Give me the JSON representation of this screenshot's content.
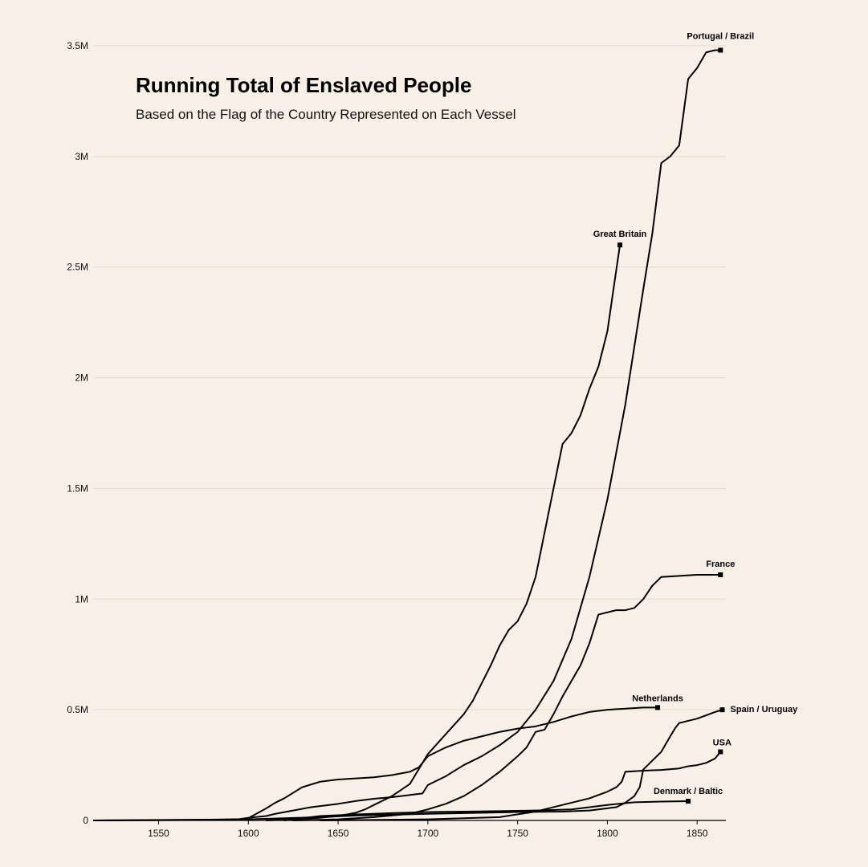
{
  "chart_data": {
    "type": "line",
    "title": "Running Total of Enslaved People",
    "subtitle": "Based on the Flag of the Country Represented on Each Vessel",
    "xlabel": "",
    "ylabel": "",
    "xlim": [
      1514,
      1866
    ],
    "ylim": [
      0,
      3500000
    ],
    "x_ticks": [
      1550,
      1600,
      1650,
      1700,
      1750,
      1800,
      1850
    ],
    "y_ticks": [
      0,
      500000,
      1000000,
      1500000,
      2000000,
      2500000,
      3000000,
      3500000
    ],
    "y_tick_labels": [
      "0",
      "0.5M",
      "1M",
      "1.5M",
      "2M",
      "2.5M",
      "3M",
      "3.5M"
    ],
    "grid": "horizontal",
    "line_color": "#000000",
    "grid_color": "#e4dad0",
    "background": "#f8efe6",
    "series": [
      {
        "name": "Portugal / Brazil",
        "x": [
          1514,
          1550,
          1580,
          1595,
          1600,
          1610,
          1615,
          1625,
          1635,
          1650,
          1660,
          1670,
          1680,
          1690,
          1697,
          1700,
          1710,
          1720,
          1725,
          1730,
          1740,
          1750,
          1760,
          1770,
          1780,
          1790,
          1800,
          1810,
          1820,
          1825,
          1830,
          1835,
          1840,
          1845,
          1850,
          1855,
          1860,
          1863
        ],
        "y": [
          0,
          1000,
          3000,
          6000,
          12000,
          20000,
          30000,
          45000,
          60000,
          75000,
          88000,
          98000,
          105000,
          115000,
          122000,
          160000,
          200000,
          250000,
          270000,
          290000,
          340000,
          400000,
          500000,
          630000,
          820000,
          1100000,
          1450000,
          1880000,
          2400000,
          2650000,
          2970000,
          3000000,
          3050000,
          3350000,
          3400000,
          3470000,
          3480000,
          3480000
        ]
      },
      {
        "name": "Great Britain",
        "x": [
          1610,
          1620,
          1630,
          1640,
          1650,
          1660,
          1665,
          1670,
          1680,
          1690,
          1700,
          1710,
          1720,
          1725,
          1730,
          1735,
          1740,
          1745,
          1750,
          1755,
          1760,
          1765,
          1770,
          1775,
          1780,
          1785,
          1790,
          1795,
          1800,
          1805,
          1807
        ],
        "y": [
          0,
          3000,
          7000,
          12000,
          20000,
          35000,
          50000,
          70000,
          110000,
          165000,
          300000,
          390000,
          480000,
          540000,
          620000,
          700000,
          790000,
          860000,
          900000,
          980000,
          1100000,
          1300000,
          1500000,
          1700000,
          1750000,
          1830000,
          1950000,
          2050000,
          2210000,
          2490000,
          2600000
        ]
      },
      {
        "name": "France",
        "x": [
          1625,
          1650,
          1670,
          1690,
          1700,
          1710,
          1720,
          1730,
          1740,
          1750,
          1755,
          1760,
          1765,
          1770,
          1775,
          1780,
          1785,
          1790,
          1795,
          1800,
          1805,
          1810,
          1815,
          1820,
          1825,
          1830,
          1840,
          1850,
          1863
        ],
        "y": [
          0,
          5000,
          15000,
          30000,
          50000,
          75000,
          110000,
          160000,
          220000,
          290000,
          330000,
          400000,
          410000,
          480000,
          560000,
          630000,
          700000,
          800000,
          930000,
          940000,
          950000,
          950000,
          960000,
          1000000,
          1060000,
          1100000,
          1105000,
          1110000,
          1110000
        ]
      },
      {
        "name": "Netherlands",
        "x": [
          1600,
          1610,
          1615,
          1620,
          1630,
          1640,
          1650,
          1660,
          1670,
          1680,
          1690,
          1695,
          1700,
          1710,
          1720,
          1730,
          1740,
          1750,
          1760,
          1770,
          1780,
          1790,
          1800,
          1810,
          1820,
          1828
        ],
        "y": [
          10000,
          55000,
          80000,
          100000,
          150000,
          175000,
          185000,
          190000,
          195000,
          205000,
          220000,
          240000,
          290000,
          330000,
          360000,
          380000,
          400000,
          415000,
          425000,
          445000,
          470000,
          490000,
          500000,
          505000,
          510000,
          510000
        ]
      },
      {
        "name": "Spain / Uruguay",
        "x": [
          1514,
          1600,
          1640,
          1660,
          1700,
          1750,
          1775,
          1790,
          1800,
          1805,
          1810,
          1815,
          1818,
          1820,
          1825,
          1830,
          1835,
          1838,
          1840,
          1845,
          1850,
          1855,
          1860,
          1864
        ],
        "y": [
          0,
          5000,
          15000,
          22000,
          30000,
          38000,
          40000,
          45000,
          55000,
          60000,
          80000,
          110000,
          150000,
          230000,
          270000,
          310000,
          380000,
          420000,
          440000,
          450000,
          460000,
          475000,
          490000,
          500000
        ]
      },
      {
        "name": "USA",
        "x": [
          1640,
          1700,
          1740,
          1760,
          1770,
          1780,
          1790,
          1795,
          1800,
          1805,
          1808,
          1810,
          1820,
          1830,
          1840,
          1845,
          1850,
          1855,
          1860,
          1863
        ],
        "y": [
          0,
          5000,
          15000,
          40000,
          60000,
          80000,
          100000,
          115000,
          130000,
          150000,
          175000,
          220000,
          225000,
          228000,
          235000,
          245000,
          250000,
          260000,
          280000,
          310000
        ]
      },
      {
        "name": "Denmark / Baltic",
        "x": [
          1620,
          1640,
          1660,
          1680,
          1700,
          1720,
          1740,
          1760,
          1780,
          1800,
          1815,
          1830,
          1845
        ],
        "y": [
          0,
          20000,
          27000,
          33000,
          38000,
          40000,
          42000,
          45000,
          50000,
          70000,
          82000,
          85000,
          87000
        ]
      }
    ],
    "end_labels": [
      "Portugal / Brazil",
      "Great Britain",
      "France",
      "Netherlands",
      "Spain / Uruguay",
      "USA",
      "Denmark / Baltic"
    ]
  }
}
